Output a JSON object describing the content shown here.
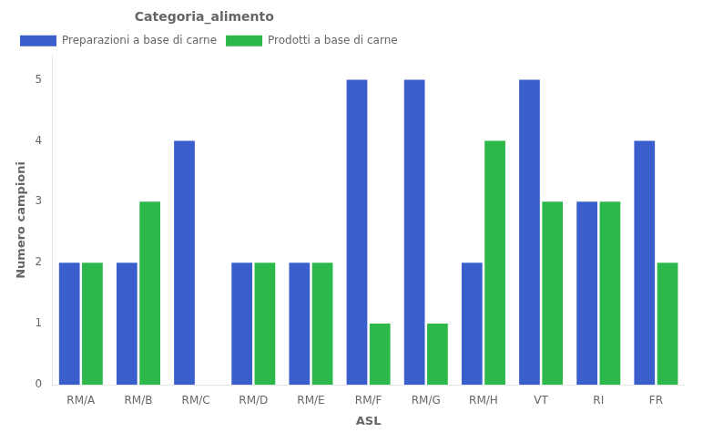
{
  "chart_data": {
    "type": "bar",
    "title": "Categoria_alimento",
    "xlabel": "ASL",
    "ylabel": "Numero campioni",
    "categories": [
      "RM/A",
      "RM/B",
      "RM/C",
      "RM/D",
      "RM/E",
      "RM/F",
      "RM/G",
      "RM/H",
      "VT",
      "RI",
      "FR"
    ],
    "series": [
      {
        "name": "Preparazioni a base di carne",
        "color": "#3a5fcd",
        "values": [
          2,
          2,
          4,
          2,
          2,
          5,
          5,
          2,
          5,
          3,
          4
        ]
      },
      {
        "name": "Prodotti a base di carne",
        "color": "#2db84b",
        "values": [
          2,
          3,
          0,
          2,
          2,
          1,
          1,
          4,
          3,
          3,
          2
        ]
      }
    ],
    "ylim": [
      0,
      5.4
    ],
    "yticks": [
      0,
      1,
      2,
      3,
      4,
      5
    ],
    "grid": false,
    "legend": "upper left"
  }
}
